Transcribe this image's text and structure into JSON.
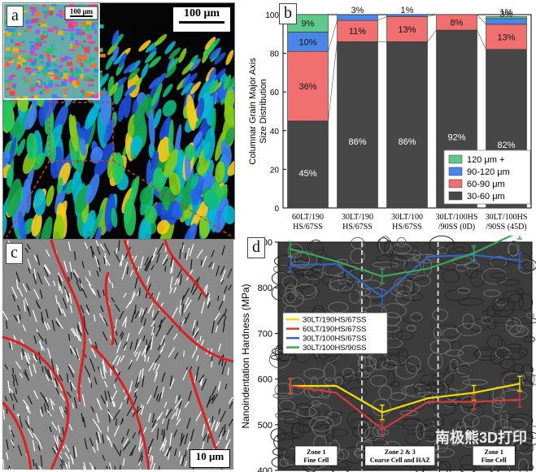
{
  "panels": {
    "a": {
      "label": "a",
      "scale_main": "100 μm",
      "scale_inset": "100 μm"
    },
    "b": {
      "label": "b"
    },
    "c": {
      "label": "c",
      "scale": "10 μm"
    },
    "d": {
      "label": "d"
    }
  },
  "colors": {
    "c120plus": "#5fc98a",
    "c90_120": "#4a86e8",
    "c60_90": "#f07070",
    "c30_60": "#474747",
    "yellow": "#f2e000",
    "red": "#d63b3b",
    "blue": "#2e66c8",
    "green": "#3aa855"
  },
  "chart_data": [
    {
      "type": "bar",
      "stacked": true,
      "ylabel": "Columnar Grain Major Axis\nSize Distribution",
      "ylim": [
        0,
        100
      ],
      "yticks": [
        0,
        20,
        40,
        60,
        80,
        100
      ],
      "categories": [
        "60LT/190\nHS/67SS",
        "30LT/190\nHS/67SS",
        "30LT/100\nHS/67SS",
        "30LT/100HS\n/90SS (0D)",
        "30LT/100HS\n/90SS (45D)"
      ],
      "series": [
        {
          "name": "30-60 μm",
          "color": "#474747",
          "values": [
            45,
            86,
            86,
            92,
            82
          ],
          "labels": [
            "45%",
            "86%",
            "86%",
            "92%",
            "82%"
          ]
        },
        {
          "name": "60-90 μm",
          "color": "#f07070",
          "values": [
            36,
            11,
            13,
            8,
            13
          ],
          "labels": [
            "36%",
            "11%",
            "13%",
            "8%",
            "13%"
          ]
        },
        {
          "name": "90-120 μm",
          "color": "#4a86e8",
          "values": [
            10,
            3,
            1,
            0,
            3
          ],
          "labels": [
            "10%",
            "3%",
            "1%",
            "",
            "3%"
          ]
        },
        {
          "name": "120 μm +",
          "color": "#5fc98a",
          "values": [
            9,
            0,
            0,
            0,
            1
          ],
          "labels": [
            "9%",
            "",
            "",
            "",
            "1%"
          ]
        }
      ],
      "legend_order": [
        "120 μm +",
        "90-120 μm",
        "60-90 μm",
        "30-60 μm"
      ],
      "legend_position": "bottom-right"
    },
    {
      "type": "line",
      "ylabel": "Nanoindentation Hardness (MPa)",
      "ylim": [
        400,
        900
      ],
      "yticks": [
        400,
        500,
        600,
        700,
        800,
        900
      ],
      "x_points": 6,
      "series": [
        {
          "name": "30LT/190HS/67SS",
          "color": "#f2e000",
          "values": [
            585,
            585,
            527,
            558,
            570,
            590
          ]
        },
        {
          "name": "60LT/190HS/67SS",
          "color": "#d63b3b",
          "values": [
            585,
            570,
            490,
            550,
            550,
            555
          ]
        },
        {
          "name": "30LT/100HS/67SS",
          "color": "#2e66c8",
          "values": [
            850,
            852,
            780,
            868,
            872,
            860
          ]
        },
        {
          "name": "30LT/100HS/90SS",
          "color": "#3aa855",
          "values": [
            885,
            858,
            825,
            842,
            876,
            923
          ]
        }
      ],
      "zones": [
        {
          "title": "Zone 1",
          "sub": "Fine Cell"
        },
        {
          "title": "Zone 2 & 3",
          "sub": "Coarse Cell and HAZ"
        },
        {
          "title": "Zone 1",
          "sub": "Fine Cell"
        }
      ],
      "watermark": "南极熊3D打印"
    }
  ]
}
